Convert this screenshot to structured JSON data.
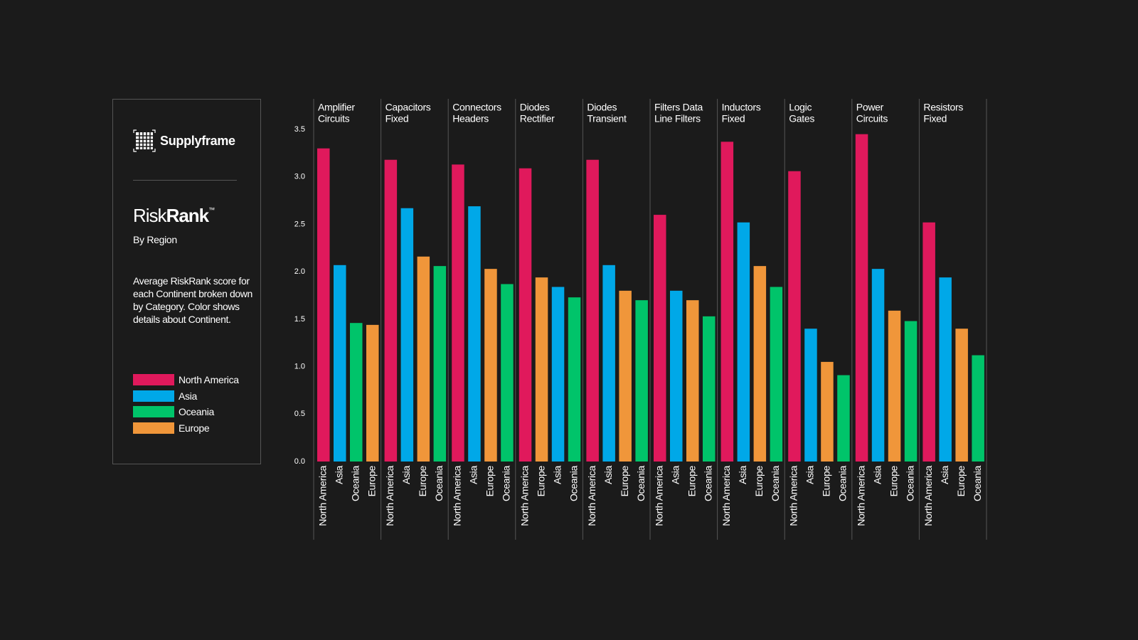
{
  "brand": "Supplyframe",
  "panel": {
    "title_light": "Risk",
    "title_bold": "Rank",
    "title_mark": "™",
    "subtitle": "By Region",
    "description": "Average RiskRank score for each Continent broken down by Category. Color shows details about Continent."
  },
  "chart_data": {
    "type": "bar",
    "legend": [
      {
        "name": "North America",
        "color": "#e0195c"
      },
      {
        "name": "Asia",
        "color": "#00a8e8"
      },
      {
        "name": "Oceania",
        "color": "#00c46a"
      },
      {
        "name": "Europe",
        "color": "#f0963a"
      }
    ],
    "ylim": [
      0,
      3.5
    ],
    "yticks": [
      {
        "value": 0,
        "label": "0.0"
      },
      {
        "value": 0.5,
        "label": "0.5"
      },
      {
        "value": 1,
        "label": "1.0"
      },
      {
        "value": 1.5,
        "label": "1.5"
      },
      {
        "value": 2,
        "label": "2.0"
      },
      {
        "value": 2.5,
        "label": "2.5"
      },
      {
        "value": 3,
        "label": "3.0"
      },
      {
        "value": 3.5,
        "label": "3.5"
      }
    ],
    "facets": [
      {
        "title": [
          "Amplifier",
          "Circuits"
        ],
        "bars": [
          {
            "label": "North America",
            "value": 3.3
          },
          {
            "label": "Asia",
            "value": 2.07
          },
          {
            "label": "Oceania",
            "value": 1.46
          },
          {
            "label": "Europe",
            "value": 1.44
          }
        ]
      },
      {
        "title": [
          "Capacitors",
          "Fixed"
        ],
        "bars": [
          {
            "label": "North America",
            "value": 3.18
          },
          {
            "label": "Asia",
            "value": 2.67
          },
          {
            "label": "Europe",
            "value": 2.16
          },
          {
            "label": "Oceania",
            "value": 2.06
          }
        ]
      },
      {
        "title": [
          "Connectors",
          "Headers"
        ],
        "bars": [
          {
            "label": "North America",
            "value": 3.13
          },
          {
            "label": "Asia",
            "value": 2.69
          },
          {
            "label": "Europe",
            "value": 2.03
          },
          {
            "label": "Oceania",
            "value": 1.87
          }
        ]
      },
      {
        "title": [
          "Diodes",
          "Rectifier"
        ],
        "bars": [
          {
            "label": "North America",
            "value": 3.09
          },
          {
            "label": "Europe",
            "value": 1.94
          },
          {
            "label": "Asia",
            "value": 1.84
          },
          {
            "label": "Oceania",
            "value": 1.73
          }
        ]
      },
      {
        "title": [
          "Diodes",
          "Transient"
        ],
        "bars": [
          {
            "label": "North America",
            "value": 3.18
          },
          {
            "label": "Asia",
            "value": 2.07
          },
          {
            "label": "Europe",
            "value": 1.8
          },
          {
            "label": "Oceania",
            "value": 1.7
          }
        ]
      },
      {
        "title": [
          "Filters Data",
          "Line Filters"
        ],
        "bars": [
          {
            "label": "North America",
            "value": 2.6
          },
          {
            "label": "Asia",
            "value": 1.8
          },
          {
            "label": "Europe",
            "value": 1.7
          },
          {
            "label": "Oceania",
            "value": 1.53
          }
        ]
      },
      {
        "title": [
          "Inductors",
          "Fixed"
        ],
        "bars": [
          {
            "label": "North America",
            "value": 3.37
          },
          {
            "label": "Asia",
            "value": 2.52
          },
          {
            "label": "Europe",
            "value": 2.06
          },
          {
            "label": "Oceania",
            "value": 1.84
          }
        ]
      },
      {
        "title": [
          "Logic",
          "Gates"
        ],
        "bars": [
          {
            "label": "North America",
            "value": 3.06
          },
          {
            "label": "Asia",
            "value": 1.4
          },
          {
            "label": "Europe",
            "value": 1.05
          },
          {
            "label": "Oceania",
            "value": 0.91
          }
        ]
      },
      {
        "title": [
          "Power",
          "Circuits"
        ],
        "bars": [
          {
            "label": "North America",
            "value": 3.45
          },
          {
            "label": "Asia",
            "value": 2.03
          },
          {
            "label": "Europe",
            "value": 1.59
          },
          {
            "label": "Oceania",
            "value": 1.48
          }
        ]
      },
      {
        "title": [
          "Resistors",
          "Fixed"
        ],
        "bars": [
          {
            "label": "North America",
            "value": 2.52
          },
          {
            "label": "Asia",
            "value": 1.94
          },
          {
            "label": "Europe",
            "value": 1.4
          },
          {
            "label": "Oceania",
            "value": 1.12
          }
        ]
      }
    ]
  }
}
